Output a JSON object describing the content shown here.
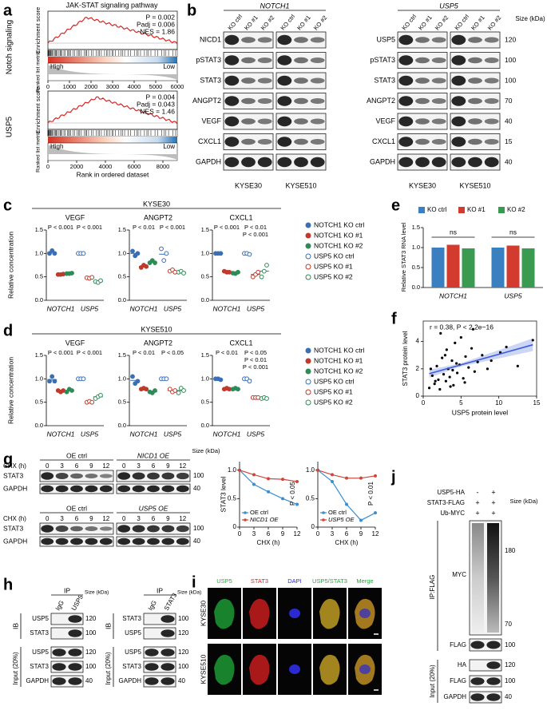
{
  "a": {
    "label": "a",
    "title": "JAK-STAT signaling pathway",
    "es_label": "Enrichment score",
    "rank_label": "Ranked list metric",
    "high": "High",
    "low": "Low",
    "x_label": "Rank in ordered dataset",
    "rows": [
      {
        "name": "Notch signaling",
        "stats": [
          "P = 0.002",
          "Padj = 0.006",
          "NES = 1.86"
        ],
        "xlim": [
          0,
          6000
        ],
        "xticks": [
          0,
          1000,
          2000,
          3000,
          4000,
          5000,
          6000
        ]
      },
      {
        "name": "USP5",
        "stats": [
          "P = 0.004",
          "Padj = 0.043",
          "NES = 1.46"
        ],
        "xlim": [
          0,
          9000
        ],
        "xticks": [
          0,
          2000,
          4000,
          6000,
          8000
        ]
      }
    ]
  },
  "b": {
    "label": "b",
    "size_header": "Size (kDa)",
    "cell_lines": [
      "KYSE30",
      "KYSE510"
    ],
    "lanes": [
      "KO ctrl",
      "KO #1",
      "KO #2"
    ],
    "groups": [
      {
        "gene": "NOTCH1",
        "rows": [
          "NICD1",
          "pSTAT3",
          "STAT3",
          "ANGPT2",
          "VEGF",
          "CXCL1",
          "GAPDH"
        ]
      },
      {
        "gene": "USP5",
        "rows": [
          "USP5",
          "pSTAT3",
          "STAT3",
          "ANGPT2",
          "VEGF",
          "CXCL1",
          "GAPDH"
        ],
        "sizes": [
          120,
          100,
          100,
          70,
          40,
          15,
          40
        ]
      }
    ]
  },
  "c": {
    "label": "c",
    "type": "dot",
    "cell_line": "KYSE30",
    "y_label": "Relative concentration",
    "categories": [
      "NOTCH1",
      "USP5"
    ],
    "ylim": [
      0,
      1.5
    ],
    "yticks": [
      {
        "value": 0,
        "label": "0.0"
      },
      {
        "value": 0.5,
        "label": "0.5"
      },
      {
        "value": 1,
        "label": "1.0"
      },
      {
        "value": 1.5,
        "label": "1.5"
      }
    ],
    "series": [
      {
        "name": "NOTCH1 KO ctrl",
        "color": "#3a6fb5",
        "filled": true
      },
      {
        "name": "NOTCH1 KO #1",
        "color": "#c0392b",
        "filled": true
      },
      {
        "name": "NOTCH1 KO #2",
        "color": "#2e8b57",
        "filled": true
      },
      {
        "name": "USP5 KO ctrl",
        "color": "#3a6fb5",
        "filled": false
      },
      {
        "name": "USP5 KO #1",
        "color": "#c0392b",
        "filled": false
      },
      {
        "name": "USP5 KO #2",
        "color": "#2e8b57",
        "filled": false
      }
    ],
    "plots": [
      {
        "title": "VEGF",
        "values": [
          [
            1.0,
            1.06,
            1.0
          ],
          [
            0.55,
            0.55,
            0.56
          ],
          [
            0.57,
            0.57,
            0.58
          ],
          [
            1.0,
            1.0,
            1.0
          ],
          [
            0.48,
            0.47,
            0.49
          ],
          [
            0.4,
            0.38,
            0.42
          ]
        ],
        "pvalues": [
          [
            "P < 0.001"
          ],
          [
            "P < 0.001"
          ]
        ]
      },
      {
        "title": "ANGPT2",
        "values": [
          [
            1.05,
            0.95,
            1.0
          ],
          [
            0.7,
            0.75,
            0.72
          ],
          [
            0.8,
            0.85,
            0.8
          ],
          [
            1.1,
            0.85,
            1.0
          ],
          [
            0.62,
            0.65,
            0.6
          ],
          [
            0.6,
            0.62,
            0.58
          ]
        ],
        "pvalues": [
          [
            "P < 0.01"
          ],
          [
            "P < 0.001"
          ]
        ]
      },
      {
        "title": "CXCL1",
        "values": [
          [
            1.0,
            1.0,
            1.0
          ],
          [
            0.62,
            0.6,
            0.6
          ],
          [
            0.58,
            0.57,
            0.6
          ],
          [
            1.0,
            1.0,
            0.98
          ],
          [
            0.5,
            0.55,
            0.6
          ],
          [
            0.5,
            0.62,
            0.75
          ]
        ],
        "pvalues": [
          [
            "P < 0.001"
          ],
          [
            "P < 0.01",
            "P < 0.001"
          ]
        ]
      }
    ]
  },
  "d": {
    "label": "d",
    "type": "dot",
    "cell_line": "KYSE510",
    "y_label": "Relative concentration",
    "categories": [
      "NOTCH1",
      "USP5"
    ],
    "ylim": [
      0,
      1.5
    ],
    "yticks": [
      {
        "value": 0,
        "label": "0.0"
      },
      {
        "value": 0.5,
        "label": "0.5"
      },
      {
        "value": 1,
        "label": "1.0"
      },
      {
        "value": 1.5,
        "label": "1.5"
      }
    ],
    "series": [
      {
        "name": "NOTCH1 KO ctrl",
        "color": "#3a6fb5",
        "filled": true
      },
      {
        "name": "NOTCH1 KO #1",
        "color": "#c0392b",
        "filled": true
      },
      {
        "name": "NOTCH1 KO #2",
        "color": "#2e8b57",
        "filled": true
      },
      {
        "name": "USP5 KO ctrl",
        "color": "#3a6fb5",
        "filled": false
      },
      {
        "name": "USP5 KO #1",
        "color": "#c0392b",
        "filled": false
      },
      {
        "name": "USP5 KO #2",
        "color": "#2e8b57",
        "filled": false
      }
    ],
    "plots": [
      {
        "title": "VEGF",
        "values": [
          [
            0.95,
            1.05,
            0.95
          ],
          [
            0.75,
            0.72,
            0.75
          ],
          [
            0.72,
            0.78,
            0.75
          ],
          [
            1.0,
            1.0,
            1.0
          ],
          [
            0.5,
            0.52,
            0.5
          ],
          [
            0.58,
            0.62,
            0.65
          ]
        ],
        "pvalues": [
          [
            "P < 0.001"
          ],
          [
            "P < 0.001"
          ]
        ]
      },
      {
        "title": "ANGPT2",
        "values": [
          [
            1.05,
            0.9,
            0.95
          ],
          [
            0.78,
            0.8,
            0.78
          ],
          [
            0.72,
            0.7,
            0.75
          ],
          [
            1.0,
            1.0,
            1.0
          ],
          [
            0.78,
            0.72,
            0.75
          ],
          [
            0.7,
            0.8,
            0.75
          ]
        ],
        "pvalues": [
          [
            "P < 0.01"
          ],
          [
            "P < 0.05"
          ]
        ]
      },
      {
        "title": "CXCL1",
        "values": [
          [
            1.0,
            1.0,
            0.98
          ],
          [
            0.78,
            0.8,
            0.78
          ],
          [
            0.78,
            0.8,
            0.78
          ],
          [
            1.0,
            1.0,
            0.95
          ],
          [
            0.6,
            0.6,
            0.6
          ],
          [
            0.58,
            0.6,
            0.58
          ]
        ],
        "pvalues": [
          [
            "P < 0.01"
          ],
          [
            "P < 0.05",
            "P < 0.01",
            "P < 0.001"
          ]
        ]
      }
    ]
  },
  "e": {
    "label": "e",
    "type": "bar",
    "y_label": "Relative STAT3 RNA level",
    "categories": [
      "NOTCH1",
      "USP5"
    ],
    "ylim": [
      0,
      1.5
    ],
    "yticks": [
      {
        "value": 0,
        "label": "0.0"
      },
      {
        "value": 0.5,
        "label": "0.5"
      },
      {
        "value": 1,
        "label": "1.0"
      },
      {
        "value": 1.5,
        "label": "1.5"
      }
    ],
    "series": [
      {
        "name": "KO ctrl",
        "color": "#3a7fc0",
        "values": [
          1.0,
          1.0
        ]
      },
      {
        "name": "KO #1",
        "color": "#d23b2e",
        "values": [
          1.07,
          1.05
        ]
      },
      {
        "name": "KO #2",
        "color": "#3a9a50",
        "values": [
          0.98,
          0.98
        ]
      }
    ],
    "annotations": [
      "ns",
      "ns"
    ]
  },
  "f": {
    "label": "f",
    "type": "scatter",
    "annotation": "r = 0.38, P < 2.2e−16",
    "x_label": "USP5 protein level",
    "y_label": "STAT3 protein level",
    "xlim": [
      0,
      15
    ],
    "xticks": [
      0,
      5,
      10,
      15
    ],
    "ylim": [
      0,
      5.5
    ],
    "yticks": [
      0,
      2,
      4
    ],
    "color": "#000000",
    "fit_color": "#3b5bdb",
    "x": [
      0.8,
      1.2,
      1.5,
      1.8,
      2.0,
      2.2,
      2.5,
      2.7,
      3.0,
      3.1,
      3.3,
      3.5,
      3.8,
      4.0,
      4.2,
      4.5,
      4.8,
      5.0,
      5.3,
      5.6,
      6.0,
      6.4,
      6.8,
      7.2,
      7.8,
      8.5,
      9.0,
      10.2,
      11.0,
      12.5,
      14.5,
      1.0,
      2.3,
      3.6,
      4.4,
      5.5,
      2.9,
      3.9,
      6.6,
      1.6
    ],
    "y": [
      0.6,
      1.5,
      0.9,
      2.2,
      1.2,
      0.5,
      2.8,
      1.6,
      1.1,
      3.4,
      2.0,
      1.4,
      2.6,
      0.8,
      3.9,
      1.7,
      2.3,
      4.3,
      1.3,
      2.9,
      2.1,
      3.5,
      1.8,
      2.5,
      3.0,
      2.0,
      2.6,
      3.2,
      3.6,
      2.2,
      4.1,
      2.0,
      4.6,
      0.7,
      2.4,
      1.0,
      3.0,
      1.9,
      4.9,
      1.1
    ]
  },
  "g": {
    "label": "g",
    "type": "line",
    "chx": "CHX (h)",
    "size_header": "Size (kDa)",
    "rows": [
      "STAT3",
      "GAPDH"
    ],
    "sizes": [
      100,
      40
    ],
    "blots": [
      {
        "left": "OE ctrl",
        "right": "NICD1 OE"
      },
      {
        "left": "OE ctrl",
        "right": "USP5 OE"
      }
    ],
    "xlim": [
      0,
      12
    ],
    "xticks": [
      0,
      3,
      6,
      9,
      12
    ],
    "ylim": [
      0,
      1.15
    ],
    "yticks": [
      0,
      0.5,
      {
        "value": 1,
        "label": "1.0"
      }
    ],
    "y_label": "STAT3 level",
    "charts": [
      {
        "x": [
          0,
          3,
          6,
          9,
          12
        ],
        "series": [
          {
            "name": "OE ctrl",
            "color": "#3b8fd0",
            "values": [
              1.0,
              0.75,
              0.62,
              0.5,
              0.4
            ]
          },
          {
            "name": "NICD1 OE",
            "color": "#d0453a",
            "values": [
              1.0,
              0.92,
              0.85,
              0.84,
              0.8
            ]
          }
        ],
        "pvalue": "P < 0.05"
      },
      {
        "x": [
          0,
          3,
          6,
          9,
          12
        ],
        "series": [
          {
            "name": "OE ctrl",
            "color": "#3b8fd0",
            "values": [
              1.0,
              0.8,
              0.4,
              0.12,
              0.25
            ]
          },
          {
            "name": "USP5 OE",
            "color": "#d0453a",
            "values": [
              1.0,
              0.92,
              0.86,
              0.86,
              0.9
            ]
          }
        ],
        "pvalue": "P < 0.01"
      }
    ]
  },
  "h": {
    "label": "h",
    "ip": "IP",
    "ib": "IB",
    "input": "Input (20%)",
    "size_header": "Size (kDa)",
    "blots": [
      {
        "lanes": [
          "IgG",
          "USP5"
        ],
        "rows": [
          "USP5",
          "STAT3",
          "USP5",
          "STAT3",
          "GAPDH"
        ],
        "sizes": [
          120,
          100,
          120,
          100,
          40
        ]
      },
      {
        "lanes": [
          "IgG",
          "STAT3"
        ],
        "rows": [
          "STAT3",
          "USP5",
          "USP5",
          "STAT3",
          "GAPDH"
        ],
        "sizes": [
          100,
          120,
          120,
          100,
          40
        ]
      }
    ]
  },
  "i": {
    "label": "i",
    "channels": [
      {
        "name": "USP5",
        "color": "#1fae3a"
      },
      {
        "name": "STAT3",
        "color": "#e02020"
      },
      {
        "name": "DAPI",
        "color": "#2a2ad0"
      },
      {
        "name": "USP5/STAT3",
        "color": "#1fae3a"
      },
      {
        "name": "Merge",
        "color": "#1fae3a"
      }
    ],
    "rows": [
      "KYSE30",
      "KYSE510"
    ]
  },
  "j": {
    "label": "j",
    "conditions": [
      {
        "name": "USP5-HA",
        "signs": [
          "-",
          "+"
        ]
      },
      {
        "name": "STAT3-FLAG",
        "signs": [
          "+",
          "+"
        ]
      },
      {
        "name": "Ub-MYC",
        "signs": [
          "+",
          "+"
        ]
      }
    ],
    "size_header": "Size (kDa)",
    "ip": "IP:FLAG",
    "input": "Input (20%)",
    "ip_rows": [
      "MYC",
      "FLAG"
    ],
    "input_rows": [
      "HA",
      "FLAG",
      "GAPDH"
    ],
    "ip_sizes": [
      180,
      70,
      100
    ],
    "input_sizes": [
      120,
      100,
      40
    ]
  }
}
